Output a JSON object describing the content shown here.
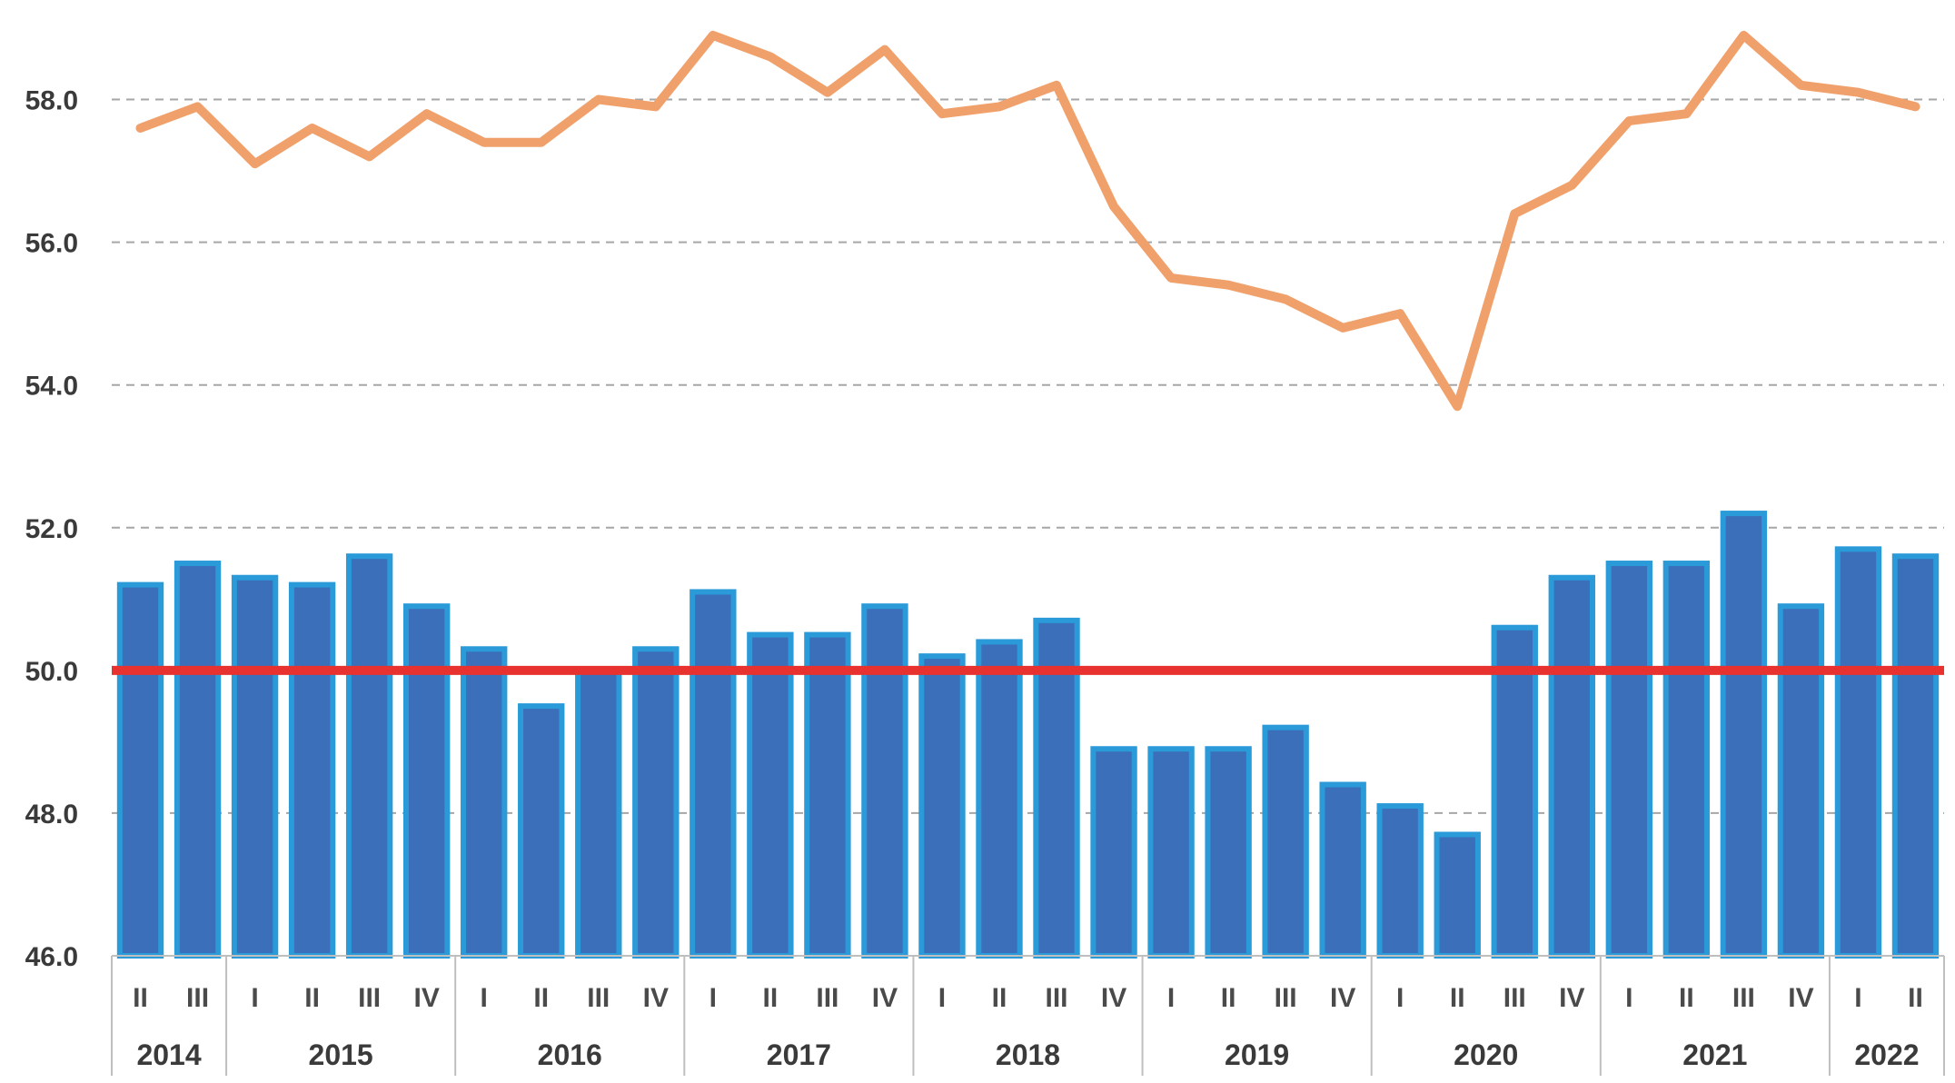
{
  "chart_data": {
    "type": "bar",
    "ylim": [
      46,
      59
    ],
    "yticks": [
      "46.0",
      "48.0",
      "50.0",
      "52.0",
      "54.0",
      "56.0",
      "58.0"
    ],
    "grid": true,
    "categories": [
      "II",
      "III",
      "I",
      "II",
      "III",
      "IV",
      "I",
      "II",
      "III",
      "IV",
      "I",
      "II",
      "III",
      "IV",
      "I",
      "II",
      "III",
      "IV",
      "I",
      "II",
      "III",
      "IV",
      "I",
      "II",
      "III",
      "IV",
      "I",
      "II",
      "III",
      "IV",
      "I",
      "II"
    ],
    "years": [
      {
        "label": "2014",
        "count": 2
      },
      {
        "label": "2015",
        "count": 4
      },
      {
        "label": "2016",
        "count": 4
      },
      {
        "label": "2017",
        "count": 4
      },
      {
        "label": "2018",
        "count": 4
      },
      {
        "label": "2019",
        "count": 4
      },
      {
        "label": "2020",
        "count": 4
      },
      {
        "label": "2021",
        "count": 4
      },
      {
        "label": "2022",
        "count": 2
      }
    ],
    "series": [
      {
        "type": "bar",
        "color": "#3b6fba",
        "edge_color": "#2a9ad8",
        "values": [
          51.2,
          51.5,
          51.3,
          51.2,
          51.6,
          50.9,
          50.3,
          49.5,
          50.0,
          50.3,
          51.1,
          50.5,
          50.5,
          50.9,
          50.2,
          50.4,
          50.7,
          48.9,
          48.9,
          48.9,
          49.2,
          48.4,
          48.1,
          47.7,
          50.6,
          51.3,
          51.5,
          51.5,
          52.2,
          50.9,
          51.7,
          51.6
        ]
      },
      {
        "type": "line",
        "color": "#f0a06a",
        "values": [
          57.6,
          57.9,
          57.1,
          57.6,
          57.2,
          57.8,
          57.4,
          57.4,
          58.0,
          57.9,
          58.9,
          58.6,
          58.1,
          58.7,
          57.8,
          57.9,
          58.2,
          56.5,
          55.5,
          55.4,
          55.2,
          54.8,
          55.0,
          53.7,
          56.4,
          56.8,
          57.7,
          57.8,
          58.9,
          58.2,
          58.1,
          57.9
        ]
      }
    ],
    "reference_line": {
      "value": 50.0,
      "color": "#e8322f"
    }
  }
}
